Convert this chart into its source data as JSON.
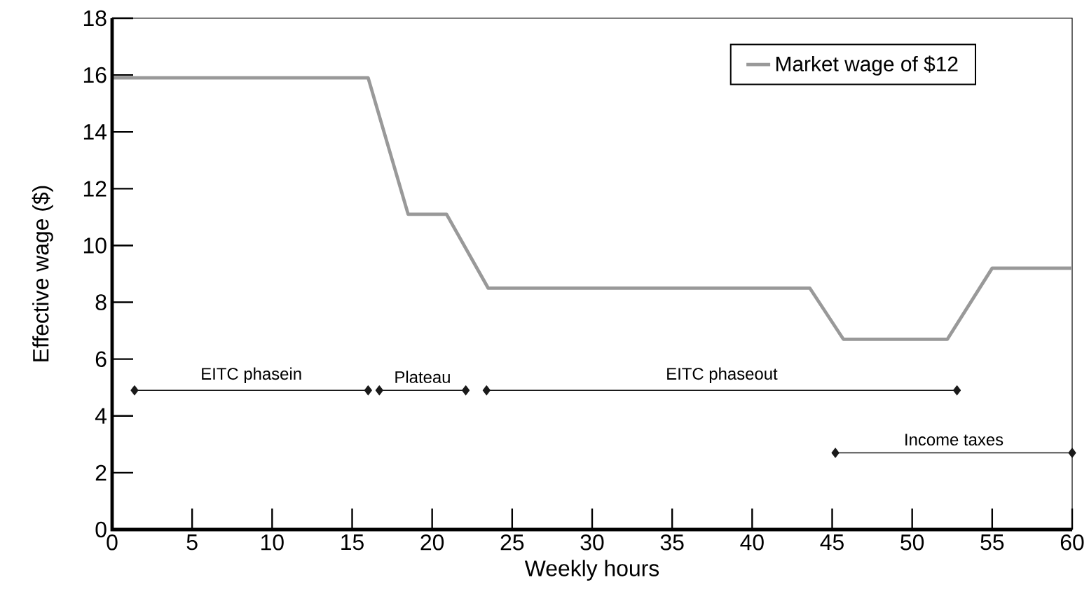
{
  "chart_data": {
    "type": "line",
    "xlabel": "Weekly hours",
    "ylabel": "Effective wage ($)",
    "xlim": [
      0,
      60
    ],
    "ylim": [
      0,
      18
    ],
    "xticks": [
      0,
      5,
      10,
      15,
      20,
      25,
      30,
      35,
      40,
      45,
      50,
      55,
      60
    ],
    "yticks": [
      0,
      2,
      4,
      6,
      8,
      10,
      12,
      14,
      16,
      18
    ],
    "grid": false,
    "legend": "top right",
    "marker": "none",
    "line_style": "solid",
    "series": [
      {
        "name": "Market wage of $12",
        "color": "#999999",
        "x": [
          0,
          16,
          18.5,
          20.9,
          23.5,
          43.6,
          45.7,
          52.2,
          55,
          60
        ],
        "values": [
          15.9,
          15.9,
          11.1,
          11.1,
          8.5,
          8.5,
          6.7,
          6.7,
          9.2,
          9.2
        ]
      },
      {
        "name": "EITC phasein",
        "type": "line",
        "marker": "diamond",
        "color": "#1a1a1a",
        "x": [
          1.4,
          16
        ],
        "values": [
          4.9,
          4.9
        ]
      },
      {
        "name": "Plateau",
        "type": "line",
        "marker": "diamond",
        "color": "#1a1a1a",
        "x": [
          16.7,
          22.1
        ],
        "values": [
          4.9,
          4.9
        ]
      },
      {
        "name": "EITC phaseout",
        "type": "line",
        "marker": "diamond",
        "color": "#1a1a1a",
        "x": [
          23.4,
          52.8
        ],
        "values": [
          4.9,
          4.9
        ]
      },
      {
        "name": "Income taxes",
        "type": "line",
        "marker": "diamond",
        "color": "#1a1a1a",
        "x": [
          45.2,
          60
        ],
        "values": [
          2.7,
          2.7
        ]
      }
    ]
  }
}
